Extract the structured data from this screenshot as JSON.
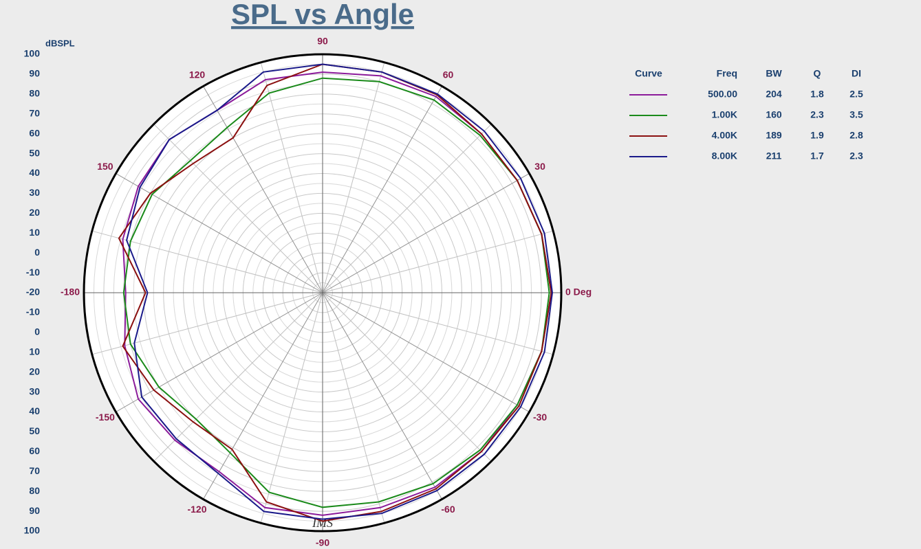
{
  "chart_data": {
    "type": "polar",
    "title": "SPL vs Angle",
    "r_label": "dBSPL",
    "watermark": "IMS",
    "x": [
      -180,
      -165,
      -150,
      -135,
      -120,
      -105,
      -90,
      -75,
      -60,
      -45,
      -30,
      -15,
      0,
      15,
      30,
      45,
      60,
      75,
      90,
      105,
      120,
      135,
      150,
      165,
      180
    ],
    "series": [
      {
        "name": "500.00",
        "color": "#8b1a9a",
        "bw": 204,
        "q": 1.8,
        "di": 2.5,
        "values": [
          79,
          83,
          87,
          85,
          84,
          92,
          92,
          92,
          93,
          93,
          93,
          94,
          95,
          94,
          93,
          93,
          94,
          93,
          91,
          91,
          86,
          89,
          87,
          84,
          79
        ]
      },
      {
        "name": "1.00K",
        "color": "#1a8a1a",
        "bw": 160,
        "q": 2.3,
        "di": 3.5,
        "values": [
          80,
          80,
          75,
          70,
          73,
          84,
          88,
          89,
          91,
          92,
          93,
          94,
          94,
          94,
          93,
          92,
          92,
          90,
          88,
          84,
          76,
          74,
          79,
          80,
          80
        ]
      },
      {
        "name": "4.00K",
        "color": "#8b1010",
        "bw": 189,
        "q": 1.9,
        "di": 2.8,
        "values": [
          69,
          84,
          78,
          72,
          71,
          89,
          95,
          94,
          94,
          93,
          94,
          94,
          95,
          94,
          93,
          93,
          95,
          95,
          95,
          88,
          70,
          72,
          80,
          86,
          69
        ]
      },
      {
        "name": "8.00K",
        "color": "#1a1a8a",
        "bw": 211,
        "q": 1.7,
        "di": 2.3,
        "values": [
          68,
          78,
          85,
          84,
          85,
          94,
          94,
          95,
          95,
          95,
          95,
          95.5,
          95.5,
          95.5,
          95,
          95,
          95.5,
          95,
          95,
          95,
          86,
          89,
          86,
          82,
          68
        ]
      }
    ],
    "legend_headers": [
      "Curve",
      "Freq",
      "BW",
      "Q",
      "DI"
    ],
    "rlim": [
      -20,
      100
    ],
    "yticks": [
      100,
      90,
      80,
      70,
      60,
      50,
      40,
      30,
      20,
      10,
      0,
      -10,
      -20,
      -10,
      0,
      10,
      20,
      30,
      40,
      50,
      60,
      70,
      80,
      90,
      100
    ],
    "xticks": [
      {
        "value": 0,
        "label": "0 Deg"
      },
      30,
      60,
      90,
      120,
      150,
      -180,
      -150,
      -120,
      -90,
      -60,
      -30
    ],
    "grid": true
  }
}
